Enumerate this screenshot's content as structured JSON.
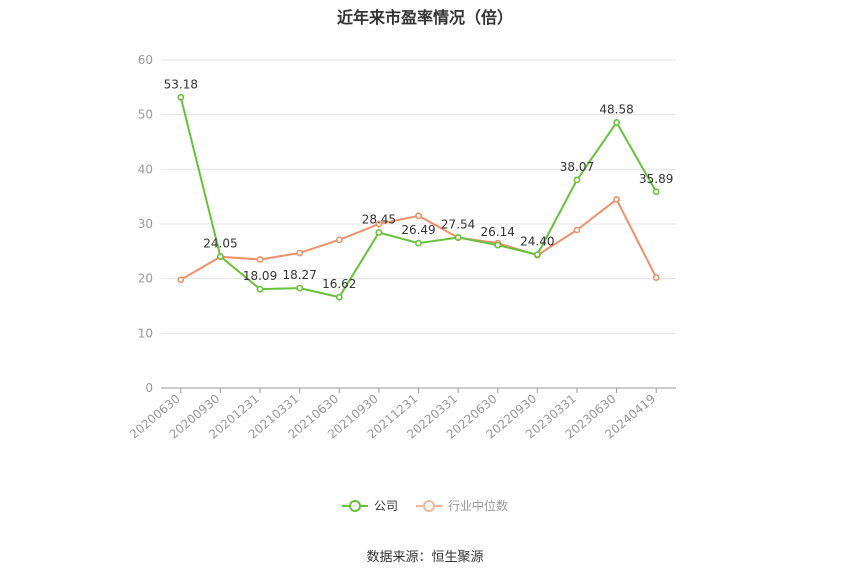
{
  "chart_data": {
    "type": "line",
    "title": "近年来市盈率情况（倍）",
    "categories": [
      "20200630",
      "20200930",
      "20201231",
      "20210331",
      "20210630",
      "20210930",
      "20211231",
      "20220331",
      "20220630",
      "20220930",
      "20230331",
      "20230630",
      "20240419"
    ],
    "ylim": [
      0,
      60
    ],
    "yticks": [
      0,
      10,
      20,
      30,
      40,
      50,
      60
    ],
    "grid": true,
    "legend_position": "bottom",
    "series": [
      {
        "name": "公司",
        "color": "#67c23a",
        "values": [
          53.18,
          24.05,
          18.09,
          18.27,
          16.62,
          28.45,
          26.49,
          27.54,
          26.14,
          24.4,
          38.07,
          48.58,
          35.89
        ],
        "labels": [
          "53.18",
          "24.05",
          "18.09",
          "18.27",
          "16.62",
          "28.45",
          "26.49",
          "27.54",
          "26.14",
          "24.40",
          "38.07",
          "48.58",
          "35.89"
        ]
      },
      {
        "name": "行业中位数",
        "color": "#f0906a",
        "values": [
          19.8,
          24.0,
          23.5,
          24.7,
          27.1,
          30.0,
          31.5,
          27.5,
          26.5,
          24.3,
          28.9,
          34.5,
          20.2
        ]
      }
    ],
    "source": "数据来源：恒生聚源"
  }
}
